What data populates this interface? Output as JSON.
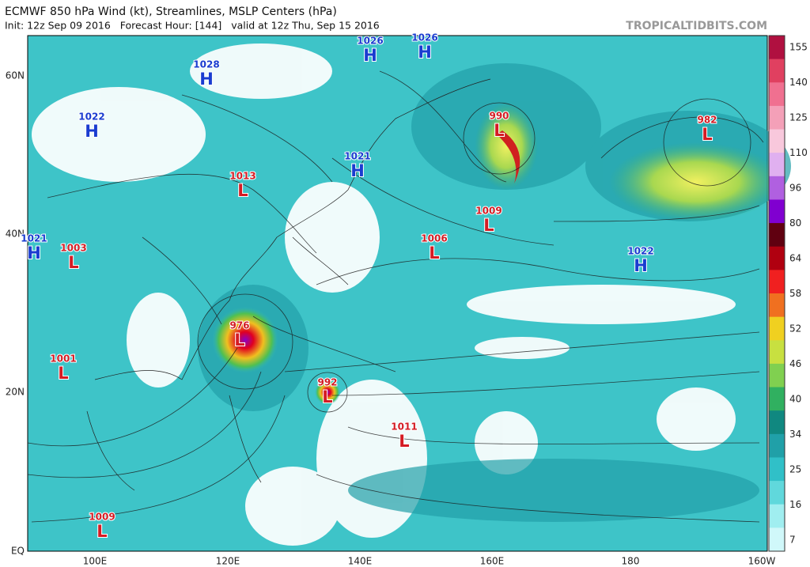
{
  "header": {
    "title": "ECMWF 850 hPa Wind (kt), Streamlines, MSLP Centers (hPa)",
    "subtitle": "Init: 12z Sep 09 2016   Forecast Hour: [144]   valid at 12z Thu, Sep 15 2016",
    "credit": "TROPICALTIDBITS.COM"
  },
  "map": {
    "lat_labels": [
      "60N",
      "40N",
      "20N",
      "EQ"
    ],
    "lon_labels": [
      "100E",
      "120E",
      "140E",
      "160E",
      "180",
      "160W"
    ],
    "centers": [
      {
        "pressure": 1026,
        "type": "H"
      },
      {
        "pressure": 1026,
        "type": "H"
      },
      {
        "pressure": 1028,
        "type": "H"
      },
      {
        "pressure": 1022,
        "type": "H"
      },
      {
        "pressure": 1021,
        "type": "H"
      },
      {
        "pressure": 1013,
        "type": "L"
      },
      {
        "pressure": 990,
        "type": "L"
      },
      {
        "pressure": 982,
        "type": "L"
      },
      {
        "pressure": 1009,
        "type": "L"
      },
      {
        "pressure": 1006,
        "type": "L"
      },
      {
        "pressure": 1022,
        "type": "H"
      },
      {
        "pressure": 1021,
        "type": "H"
      },
      {
        "pressure": 1003,
        "type": "L"
      },
      {
        "pressure": 976,
        "type": "L"
      },
      {
        "pressure": 1001,
        "type": "L"
      },
      {
        "pressure": 992,
        "type": "L"
      },
      {
        "pressure": 1011,
        "type": "L"
      },
      {
        "pressure": 1009,
        "type": "L"
      }
    ]
  },
  "colorbar": {
    "ticks": [
      155,
      140,
      125,
      110,
      96,
      80,
      64,
      58,
      52,
      46,
      40,
      34,
      25,
      16,
      7
    ]
  }
}
